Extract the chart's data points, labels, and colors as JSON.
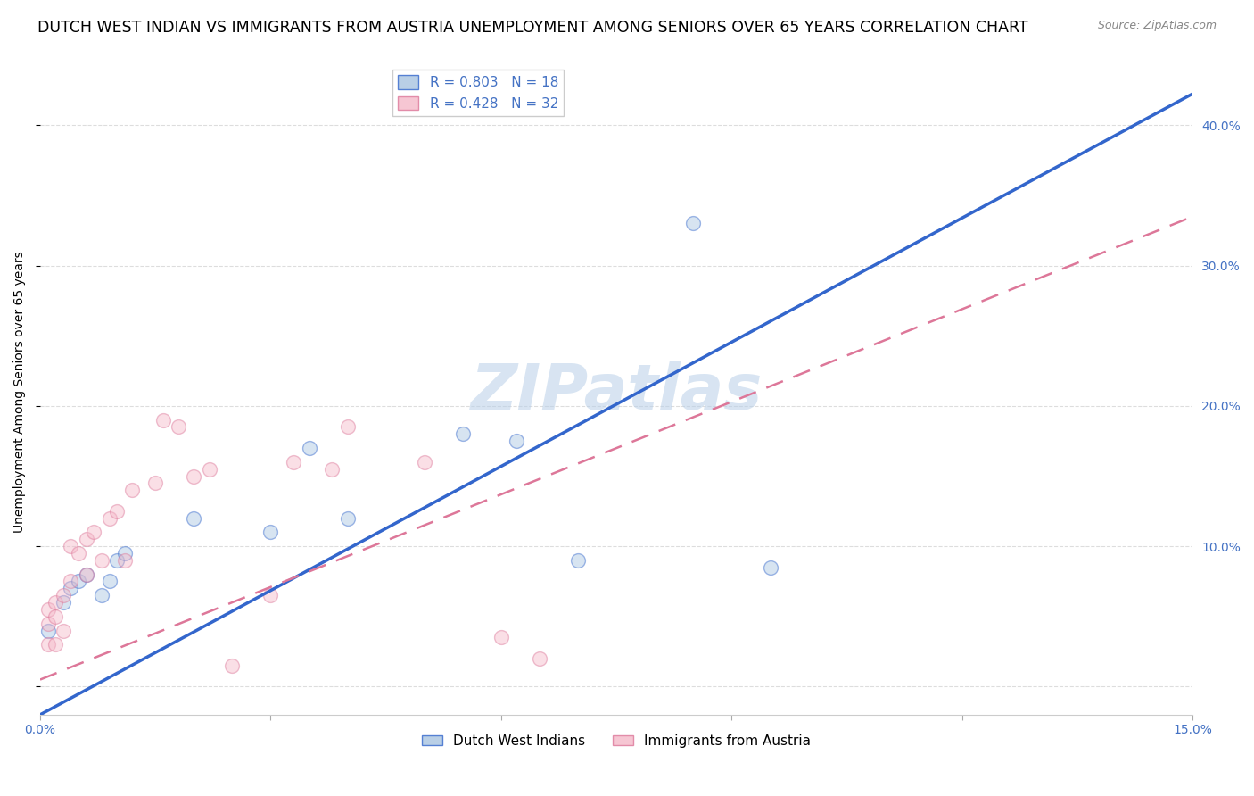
{
  "title": "DUTCH WEST INDIAN VS IMMIGRANTS FROM AUSTRIA UNEMPLOYMENT AMONG SENIORS OVER 65 YEARS CORRELATION CHART",
  "source": "Source: ZipAtlas.com",
  "tick_color": "#4472c4",
  "ylabel": "Unemployment Among Seniors over 65 years",
  "xlim": [
    0.0,
    0.15
  ],
  "ylim": [
    -0.02,
    0.44
  ],
  "xticks": [
    0.0,
    0.03,
    0.06,
    0.09,
    0.12,
    0.15
  ],
  "yticks": [
    0.0,
    0.1,
    0.2,
    0.3,
    0.4
  ],
  "xtick_labels": [
    "0.0%",
    "",
    "",
    "",
    "",
    "15.0%"
  ],
  "ytick_labels_right": [
    "",
    "10.0%",
    "20.0%",
    "30.0%",
    "40.0%"
  ],
  "watermark": "ZIPatlas",
  "blue_R": 0.803,
  "blue_N": 18,
  "pink_R": 0.428,
  "pink_N": 32,
  "blue_color": "#a8c4e0",
  "pink_color": "#f4b8c8",
  "line_blue": "#3366cc",
  "line_pink": "#dd7799",
  "legend_label_blue": "Dutch West Indians",
  "legend_label_pink": "Immigrants from Austria",
  "blue_scatter_x": [
    0.001,
    0.003,
    0.004,
    0.005,
    0.006,
    0.008,
    0.009,
    0.01,
    0.011,
    0.02,
    0.03,
    0.035,
    0.04,
    0.055,
    0.062,
    0.07,
    0.085,
    0.095
  ],
  "blue_scatter_y": [
    0.04,
    0.06,
    0.07,
    0.075,
    0.08,
    0.065,
    0.075,
    0.09,
    0.095,
    0.12,
    0.11,
    0.17,
    0.12,
    0.18,
    0.175,
    0.09,
    0.33,
    0.085
  ],
  "pink_scatter_x": [
    0.001,
    0.001,
    0.001,
    0.002,
    0.002,
    0.002,
    0.003,
    0.003,
    0.004,
    0.004,
    0.005,
    0.006,
    0.006,
    0.007,
    0.008,
    0.009,
    0.01,
    0.011,
    0.012,
    0.015,
    0.016,
    0.018,
    0.02,
    0.022,
    0.025,
    0.03,
    0.033,
    0.038,
    0.04,
    0.05,
    0.06,
    0.065
  ],
  "pink_scatter_y": [
    0.03,
    0.045,
    0.055,
    0.03,
    0.05,
    0.06,
    0.04,
    0.065,
    0.075,
    0.1,
    0.095,
    0.08,
    0.105,
    0.11,
    0.09,
    0.12,
    0.125,
    0.09,
    0.14,
    0.145,
    0.19,
    0.185,
    0.15,
    0.155,
    0.015,
    0.065,
    0.16,
    0.155,
    0.185,
    0.16,
    0.035,
    0.02
  ],
  "blue_line_slope": 2.95,
  "blue_line_intercept": -0.02,
  "pink_line_slope": 2.2,
  "pink_line_intercept": 0.005,
  "grid_color": "#dddddd",
  "background_color": "#ffffff",
  "title_fontsize": 12.5,
  "axis_label_fontsize": 10,
  "tick_fontsize": 10,
  "legend_fontsize": 11,
  "scatter_size": 130,
  "scatter_alpha": 0.45,
  "scatter_linewidth": 1.0
}
